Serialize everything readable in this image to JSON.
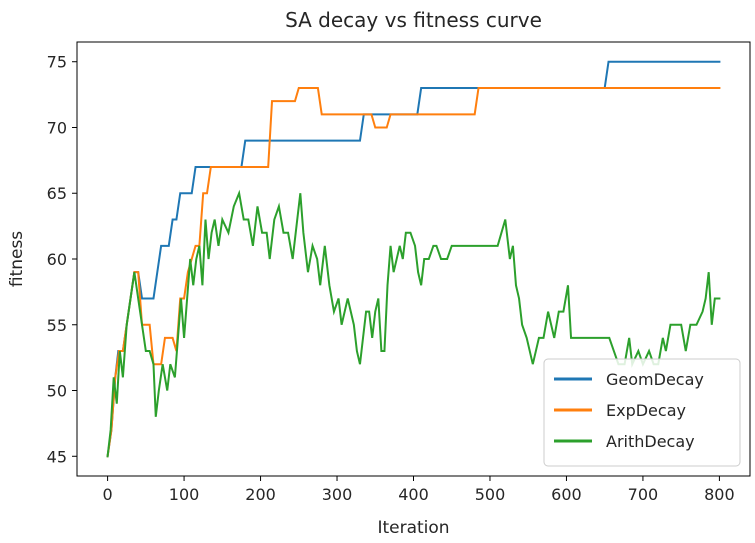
{
  "chart_data": {
    "type": "line",
    "title": "SA decay vs fitness curve",
    "xlabel": "Iteration",
    "ylabel": "fitness",
    "xlim": [
      -40,
      840
    ],
    "ylim": [
      43.5,
      76.5
    ],
    "xticks": [
      0,
      100,
      200,
      300,
      400,
      500,
      600,
      700,
      800
    ],
    "yticks": [
      45,
      50,
      55,
      60,
      65,
      70,
      75
    ],
    "grid": false,
    "legend_position": "lower-right",
    "series": [
      {
        "name": "GeomDecay",
        "color": "#1f77b4",
        "points": [
          [
            0,
            45
          ],
          [
            5,
            47
          ],
          [
            10,
            51
          ],
          [
            14,
            53
          ],
          [
            20,
            53
          ],
          [
            25,
            55
          ],
          [
            30,
            57
          ],
          [
            35,
            59
          ],
          [
            40,
            59
          ],
          [
            45,
            57
          ],
          [
            60,
            57
          ],
          [
            65,
            59
          ],
          [
            70,
            61
          ],
          [
            80,
            61
          ],
          [
            85,
            63
          ],
          [
            90,
            63
          ],
          [
            95,
            65
          ],
          [
            110,
            65
          ],
          [
            115,
            67
          ],
          [
            175,
            67
          ],
          [
            180,
            69
          ],
          [
            330,
            69
          ],
          [
            335,
            71
          ],
          [
            405,
            71
          ],
          [
            410,
            73
          ],
          [
            650,
            73
          ],
          [
            655,
            75
          ],
          [
            800,
            75
          ]
        ]
      },
      {
        "name": "ExpDecay",
        "color": "#ff7f0e",
        "points": [
          [
            0,
            45
          ],
          [
            5,
            47
          ],
          [
            10,
            51
          ],
          [
            15,
            53
          ],
          [
            20,
            53
          ],
          [
            25,
            55
          ],
          [
            30,
            57
          ],
          [
            35,
            59
          ],
          [
            40,
            59
          ],
          [
            45,
            55
          ],
          [
            55,
            55
          ],
          [
            60,
            52
          ],
          [
            70,
            52
          ],
          [
            75,
            54
          ],
          [
            85,
            54
          ],
          [
            90,
            53
          ],
          [
            95,
            57
          ],
          [
            100,
            57
          ],
          [
            105,
            59
          ],
          [
            115,
            61
          ],
          [
            120,
            61
          ],
          [
            125,
            65
          ],
          [
            130,
            65
          ],
          [
            135,
            67
          ],
          [
            210,
            67
          ],
          [
            215,
            72
          ],
          [
            245,
            72
          ],
          [
            250,
            73
          ],
          [
            275,
            73
          ],
          [
            280,
            71
          ],
          [
            345,
            71
          ],
          [
            350,
            70
          ],
          [
            365,
            70
          ],
          [
            370,
            71
          ],
          [
            480,
            71
          ],
          [
            485,
            73
          ],
          [
            800,
            73
          ]
        ]
      },
      {
        "name": "ArithDecay",
        "color": "#2ca02c",
        "points": [
          [
            0,
            45
          ],
          [
            4,
            47
          ],
          [
            8,
            51
          ],
          [
            12,
            49
          ],
          [
            16,
            53
          ],
          [
            20,
            51
          ],
          [
            25,
            55
          ],
          [
            30,
            57
          ],
          [
            35,
            59
          ],
          [
            40,
            57
          ],
          [
            45,
            55
          ],
          [
            50,
            53
          ],
          [
            55,
            53
          ],
          [
            60,
            52
          ],
          [
            63,
            48
          ],
          [
            67,
            50
          ],
          [
            72,
            52
          ],
          [
            78,
            50
          ],
          [
            82,
            52
          ],
          [
            88,
            51
          ],
          [
            92,
            54
          ],
          [
            96,
            57
          ],
          [
            100,
            54
          ],
          [
            104,
            57
          ],
          [
            108,
            60
          ],
          [
            112,
            58
          ],
          [
            116,
            60
          ],
          [
            120,
            61
          ],
          [
            124,
            58
          ],
          [
            128,
            63
          ],
          [
            132,
            60
          ],
          [
            136,
            62
          ],
          [
            140,
            63
          ],
          [
            145,
            61
          ],
          [
            150,
            63
          ],
          [
            158,
            62
          ],
          [
            165,
            64
          ],
          [
            172,
            65
          ],
          [
            178,
            63
          ],
          [
            184,
            63
          ],
          [
            190,
            61
          ],
          [
            196,
            64
          ],
          [
            202,
            62
          ],
          [
            208,
            62
          ],
          [
            212,
            60
          ],
          [
            218,
            63
          ],
          [
            224,
            64
          ],
          [
            230,
            62
          ],
          [
            236,
            62
          ],
          [
            242,
            60
          ],
          [
            248,
            63
          ],
          [
            252,
            65
          ],
          [
            256,
            62
          ],
          [
            262,
            59
          ],
          [
            268,
            61
          ],
          [
            274,
            60
          ],
          [
            278,
            58
          ],
          [
            284,
            61
          ],
          [
            290,
            58
          ],
          [
            296,
            56
          ],
          [
            302,
            57
          ],
          [
            306,
            55
          ],
          [
            310,
            56
          ],
          [
            314,
            57
          ],
          [
            318,
            56
          ],
          [
            322,
            55
          ],
          [
            326,
            53
          ],
          [
            330,
            52
          ],
          [
            334,
            54
          ],
          [
            338,
            56
          ],
          [
            342,
            56
          ],
          [
            346,
            54
          ],
          [
            350,
            56
          ],
          [
            354,
            57
          ],
          [
            358,
            53
          ],
          [
            362,
            53
          ],
          [
            366,
            58
          ],
          [
            370,
            61
          ],
          [
            374,
            59
          ],
          [
            378,
            60
          ],
          [
            382,
            61
          ],
          [
            386,
            60
          ],
          [
            390,
            62
          ],
          [
            396,
            62
          ],
          [
            402,
            61
          ],
          [
            406,
            59
          ],
          [
            410,
            58
          ],
          [
            414,
            60
          ],
          [
            420,
            60
          ],
          [
            426,
            61
          ],
          [
            430,
            61
          ],
          [
            436,
            60
          ],
          [
            444,
            60
          ],
          [
            450,
            61
          ],
          [
            460,
            61
          ],
          [
            470,
            61
          ],
          [
            490,
            61
          ],
          [
            510,
            61
          ],
          [
            520,
            63
          ],
          [
            526,
            60
          ],
          [
            530,
            61
          ],
          [
            534,
            58
          ],
          [
            538,
            57
          ],
          [
            542,
            55
          ],
          [
            548,
            54
          ],
          [
            552,
            53
          ],
          [
            556,
            52
          ],
          [
            560,
            53
          ],
          [
            564,
            54
          ],
          [
            570,
            54
          ],
          [
            576,
            56
          ],
          [
            580,
            55
          ],
          [
            584,
            54
          ],
          [
            590,
            56
          ],
          [
            596,
            56
          ],
          [
            602,
            58
          ],
          [
            606,
            54
          ],
          [
            620,
            54
          ],
          [
            640,
            54
          ],
          [
            656,
            54
          ],
          [
            662,
            53
          ],
          [
            668,
            52
          ],
          [
            676,
            52
          ],
          [
            682,
            54
          ],
          [
            686,
            52
          ],
          [
            694,
            53
          ],
          [
            700,
            52
          ],
          [
            708,
            53
          ],
          [
            714,
            52
          ],
          [
            720,
            52
          ],
          [
            726,
            54
          ],
          [
            730,
            53
          ],
          [
            736,
            55
          ],
          [
            742,
            55
          ],
          [
            750,
            55
          ],
          [
            756,
            53
          ],
          [
            762,
            55
          ],
          [
            770,
            55
          ],
          [
            778,
            56
          ],
          [
            782,
            57
          ],
          [
            786,
            59
          ],
          [
            790,
            55
          ],
          [
            794,
            57
          ],
          [
            800,
            57
          ]
        ]
      }
    ]
  }
}
